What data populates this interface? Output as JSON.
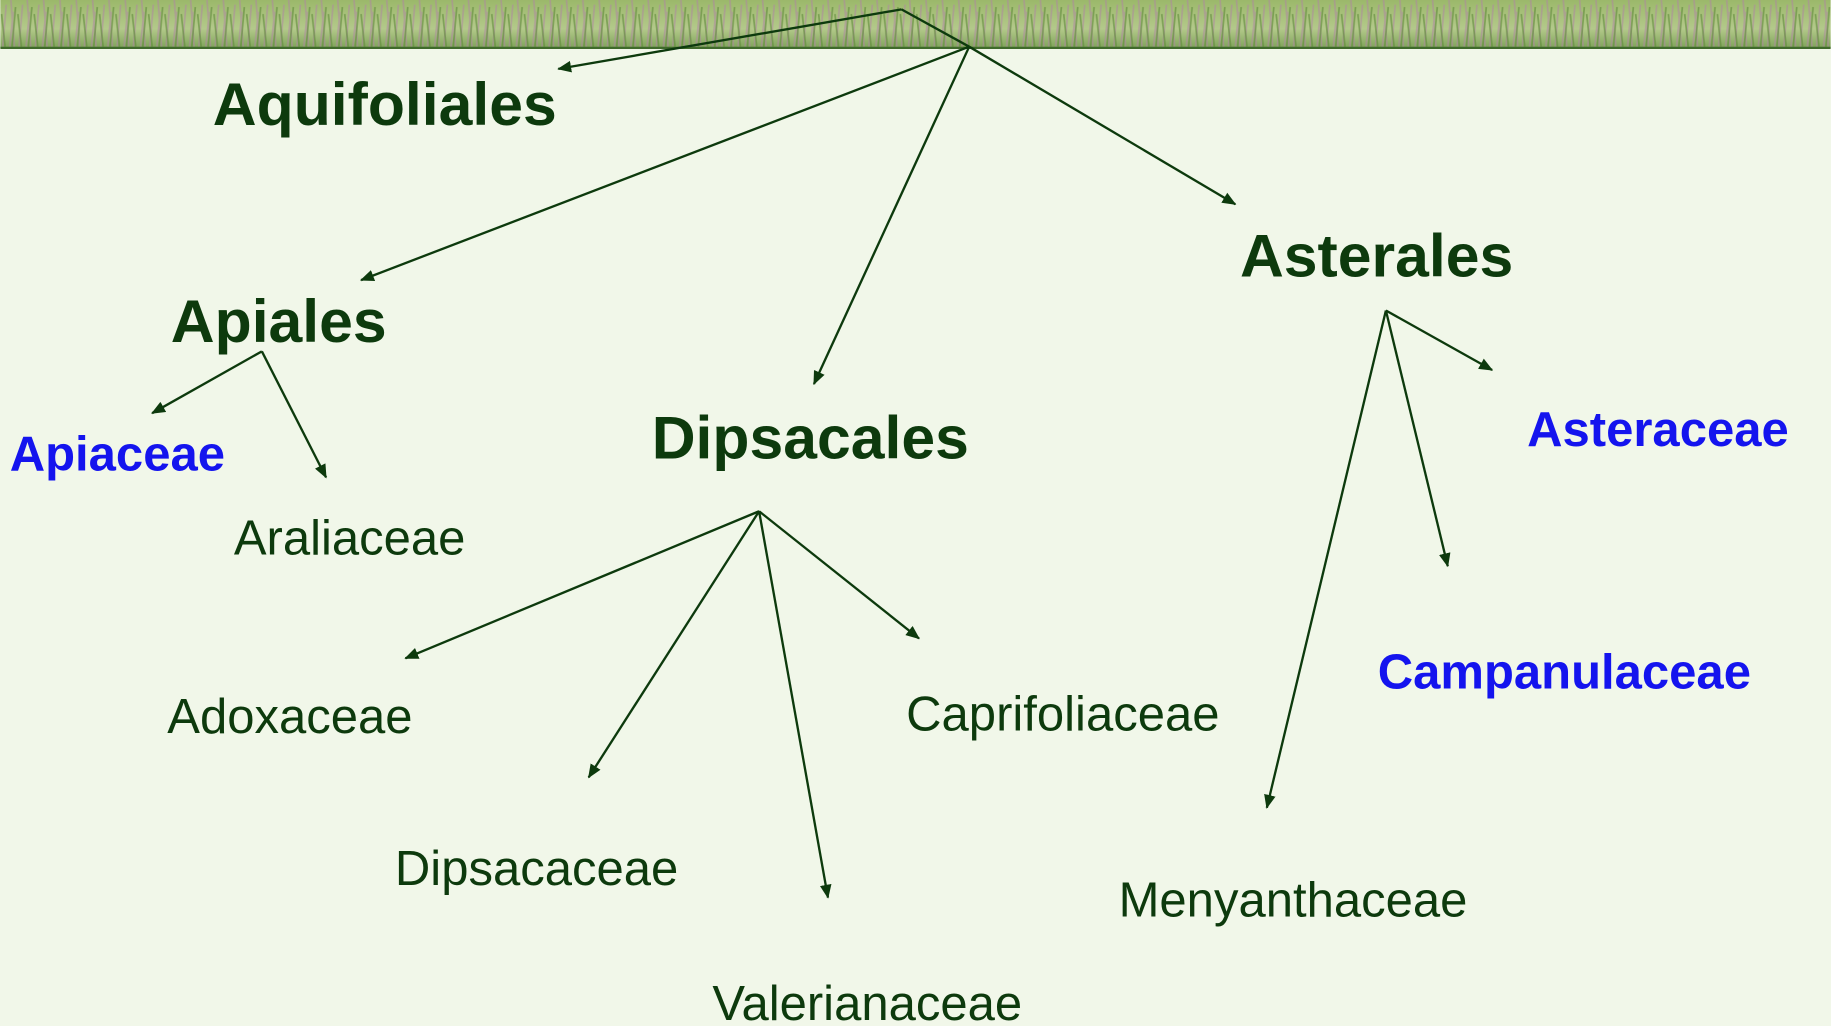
{
  "nodes": [
    {
      "label": "Aquifoliales"
    },
    {
      "label": "Apiales"
    },
    {
      "label": "Asterales"
    },
    {
      "label": "Dipsacales"
    },
    {
      "label": "Apiaceae"
    },
    {
      "label": "Araliaceae"
    },
    {
      "label": "Asteraceae"
    },
    {
      "label": "Campanulaceae"
    },
    {
      "label": "Adoxaceae"
    },
    {
      "label": "Caprifoliaceae"
    },
    {
      "label": "Dipsacaceae"
    },
    {
      "label": "Menyanthaceae"
    },
    {
      "label": "Valerianaceae"
    }
  ]
}
